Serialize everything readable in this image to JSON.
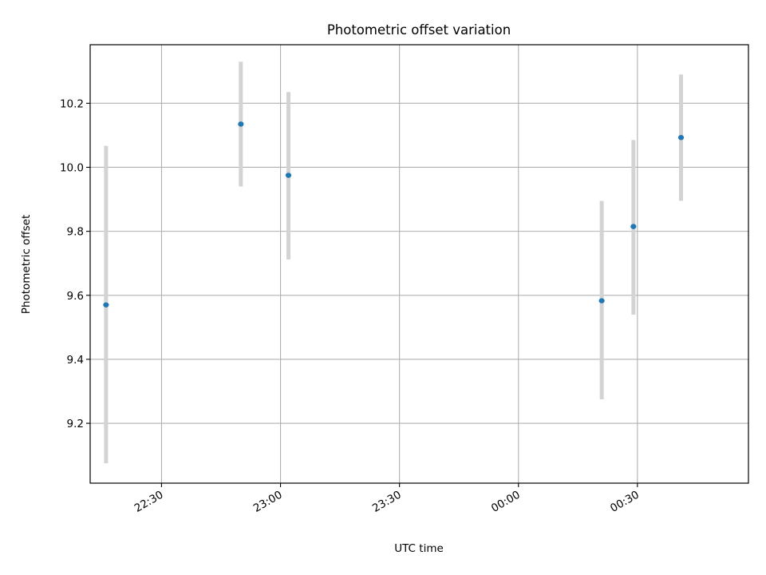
{
  "chart_data": {
    "type": "scatter",
    "title": "Photometric offset variation",
    "xlabel": "UTC time",
    "ylabel": "Photometric offset",
    "x_is_time": true,
    "xlim": [
      "22:12",
      "00:58"
    ],
    "ylim": [
      9.013,
      10.383
    ],
    "x_ticks": [
      "22:30",
      "23:00",
      "23:30",
      "00:00",
      "00:30"
    ],
    "y_ticks": [
      9.2,
      9.4,
      9.6,
      9.8,
      10.0,
      10.2
    ],
    "grid": true,
    "errorbar_color": "#d3d3d3",
    "point_color": "#1f77b4",
    "points": [
      {
        "x": "22:16",
        "y": 9.57,
        "y_err_low": 9.075,
        "y_err_high": 10.067
      },
      {
        "x": "22:50",
        "y": 10.135,
        "y_err_low": 9.94,
        "y_err_high": 10.33
      },
      {
        "x": "23:02",
        "y": 9.975,
        "y_err_low": 9.712,
        "y_err_high": 10.235
      },
      {
        "x": "00:21",
        "y": 9.583,
        "y_err_low": 9.275,
        "y_err_high": 9.895
      },
      {
        "x": "00:29",
        "y": 9.815,
        "y_err_low": 9.54,
        "y_err_high": 10.085
      },
      {
        "x": "00:41",
        "y": 10.093,
        "y_err_low": 9.895,
        "y_err_high": 10.29
      }
    ]
  }
}
